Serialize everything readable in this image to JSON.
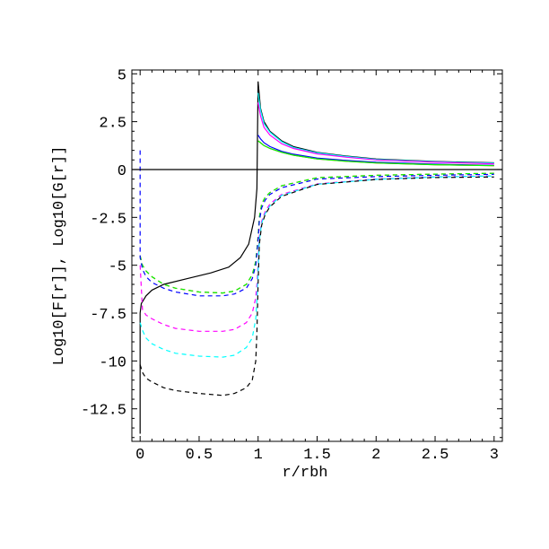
{
  "chart_data": {
    "type": "line",
    "title": "",
    "xlabel": "r/rbh",
    "ylabel": "Log10[F[r]], Log10[G[r]]",
    "xlim": [
      -0.07,
      3.07
    ],
    "ylim": [
      -14.2,
      5.2
    ],
    "xticks": [
      0,
      0.5,
      1,
      1.5,
      2,
      2.5,
      3
    ],
    "xtick_labels": [
      "0",
      "0.5",
      "1",
      "1.5",
      "2",
      "2.5",
      "3"
    ],
    "yticks": [
      5,
      2.5,
      0,
      -2.5,
      -5,
      -7.5,
      -10,
      -12.5
    ],
    "ytick_labels": [
      "5",
      "2.5",
      "0",
      "-2.5",
      "-5",
      "-7.5",
      "-10",
      "-12.5"
    ],
    "grid": false,
    "zero_line": true,
    "series": [
      {
        "style": "solid",
        "color": "#000000",
        "x": [
          0,
          0,
          0.01,
          0.05,
          0.1,
          0.2,
          0.4,
          0.6,
          0.75,
          0.85,
          0.92,
          0.97,
          0.99,
          1.0,
          1.02,
          1.05,
          1.1,
          1.2,
          1.3,
          1.5,
          1.75,
          2,
          2.5,
          3
        ],
        "y": [
          -13.8,
          -7.5,
          -7.0,
          -6.6,
          -6.3,
          -6.0,
          -5.7,
          -5.4,
          -5.1,
          -4.6,
          -3.9,
          -2.5,
          -1.0,
          4.6,
          3.2,
          2.5,
          2.0,
          1.5,
          1.2,
          0.9,
          0.7,
          0.55,
          0.42,
          0.35
        ]
      },
      {
        "style": "solid",
        "color": "#00ffff",
        "x": [
          1.0,
          1.02,
          1.05,
          1.1,
          1.2,
          1.3,
          1.5,
          1.75,
          2,
          2.5,
          3
        ],
        "y": [
          4.0,
          3.1,
          2.4,
          1.95,
          1.45,
          1.15,
          0.87,
          0.68,
          0.53,
          0.4,
          0.33
        ]
      },
      {
        "style": "solid",
        "color": "#ff00ff",
        "x": [
          1.0,
          1.02,
          1.05,
          1.1,
          1.2,
          1.3,
          1.5,
          1.75,
          2,
          2.5,
          3
        ],
        "y": [
          3.5,
          2.8,
          2.2,
          1.8,
          1.35,
          1.1,
          0.82,
          0.64,
          0.5,
          0.38,
          0.3
        ]
      },
      {
        "style": "solid",
        "color": "#0000ff",
        "x": [
          1.0,
          1.02,
          1.05,
          1.1,
          1.2,
          1.3,
          1.5,
          1.75,
          2,
          2.5,
          3
        ],
        "y": [
          1.8,
          1.6,
          1.4,
          1.2,
          0.95,
          0.8,
          0.6,
          0.47,
          0.38,
          0.28,
          0.22
        ]
      },
      {
        "style": "solid",
        "color": "#ff0000",
        "x": [
          1.0,
          1.02,
          1.05,
          1.1,
          1.2,
          1.3,
          1.5,
          1.75,
          2,
          2.5,
          3
        ],
        "y": [
          1.5,
          1.4,
          1.25,
          1.1,
          0.9,
          0.75,
          0.55,
          0.43,
          0.34,
          0.25,
          0.2
        ]
      },
      {
        "style": "solid",
        "color": "#00ff00",
        "x": [
          1.0,
          1.02,
          1.05,
          1.1,
          1.2,
          1.3,
          1.5,
          1.75,
          2,
          2.5,
          3
        ],
        "y": [
          1.5,
          1.4,
          1.25,
          1.1,
          0.9,
          0.75,
          0.55,
          0.43,
          0.34,
          0.25,
          0.2
        ]
      },
      {
        "style": "dashed",
        "color": "#ff0000",
        "x": [
          0,
          0.02,
          0.05,
          0.1,
          0.2,
          0.3,
          0.5,
          0.7,
          0.8,
          0.9,
          0.95,
          0.98,
          0.99,
          1.0,
          1.01,
          1.03,
          1.06,
          1.1,
          1.2,
          1.5,
          2,
          2.5,
          3
        ],
        "y": [
          -4.5,
          -5.0,
          -5.3,
          -5.6,
          -6.0,
          -6.2,
          -6.4,
          -6.45,
          -6.35,
          -6.0,
          -5.5,
          -4.8,
          -4.2,
          -3.5,
          -2.5,
          -1.8,
          -1.45,
          -1.2,
          -0.85,
          -0.43,
          -0.3,
          -0.24,
          -0.2
        ]
      },
      {
        "style": "dashed",
        "color": "#00ff00",
        "x": [
          0,
          0.02,
          0.05,
          0.1,
          0.2,
          0.3,
          0.5,
          0.7,
          0.8,
          0.9,
          0.95,
          0.98,
          0.99,
          1.0,
          1.01,
          1.03,
          1.06,
          1.1,
          1.2,
          1.5,
          2,
          2.5,
          3
        ],
        "y": [
          -4.5,
          -5.0,
          -5.3,
          -5.6,
          -6.0,
          -6.2,
          -6.4,
          -6.45,
          -6.35,
          -6.0,
          -5.5,
          -4.8,
          -4.2,
          -3.5,
          -2.5,
          -1.8,
          -1.45,
          -1.2,
          -0.85,
          -0.43,
          -0.3,
          -0.24,
          -0.2
        ]
      },
      {
        "style": "dashed",
        "color": "#0000ff",
        "x": [
          0,
          0,
          0.02,
          0.05,
          0.1,
          0.2,
          0.3,
          0.5,
          0.7,
          0.8,
          0.9,
          0.95,
          0.98,
          0.99,
          1.0,
          1.01,
          1.03,
          1.06,
          1.1,
          1.2,
          1.5,
          2,
          2.5,
          3
        ],
        "y": [
          1.0,
          -4.6,
          -5.2,
          -5.6,
          -5.9,
          -6.2,
          -6.4,
          -6.6,
          -6.6,
          -6.5,
          -6.2,
          -5.7,
          -5.0,
          -4.4,
          -3.7,
          -2.7,
          -2.0,
          -1.6,
          -1.3,
          -0.95,
          -0.5,
          -0.37,
          -0.3,
          -0.25
        ]
      },
      {
        "style": "dashed",
        "color": "#ff00ff",
        "x": [
          0,
          0.02,
          0.05,
          0.1,
          0.2,
          0.3,
          0.5,
          0.7,
          0.8,
          0.9,
          0.95,
          0.98,
          0.99,
          1.0,
          1.01,
          1.03,
          1.06,
          1.1,
          1.2,
          1.5,
          2,
          2.5,
          3
        ],
        "y": [
          -5.0,
          -7.3,
          -7.6,
          -7.8,
          -8.1,
          -8.3,
          -8.45,
          -8.45,
          -8.35,
          -8.0,
          -7.5,
          -6.7,
          -6.0,
          -5.0,
          -3.5,
          -2.7,
          -2.2,
          -1.8,
          -1.3,
          -0.75,
          -0.5,
          -0.38,
          -0.33
        ]
      },
      {
        "style": "dashed",
        "color": "#00ffff",
        "x": [
          0,
          0.02,
          0.05,
          0.1,
          0.2,
          0.3,
          0.5,
          0.7,
          0.8,
          0.9,
          0.95,
          0.98,
          0.99,
          1.0,
          1.01,
          1.03,
          1.06,
          1.1,
          1.2,
          1.5,
          2,
          2.5,
          3
        ],
        "y": [
          -8.0,
          -8.4,
          -8.8,
          -9.1,
          -9.4,
          -9.6,
          -9.75,
          -9.8,
          -9.7,
          -9.3,
          -8.8,
          -7.8,
          -6.8,
          -5.3,
          -3.7,
          -2.8,
          -2.3,
          -1.9,
          -1.35,
          -0.77,
          -0.51,
          -0.39,
          -0.34
        ]
      },
      {
        "style": "dashed",
        "color": "#000000",
        "x": [
          0,
          0.02,
          0.05,
          0.1,
          0.2,
          0.3,
          0.5,
          0.7,
          0.8,
          0.9,
          0.95,
          0.98,
          0.99,
          1.0,
          1.01,
          1.03,
          1.06,
          1.1,
          1.2,
          1.5,
          2,
          2.5,
          3
        ],
        "y": [
          -10.2,
          -10.6,
          -10.9,
          -11.1,
          -11.4,
          -11.55,
          -11.7,
          -11.8,
          -11.7,
          -11.4,
          -11.0,
          -10.0,
          -8.5,
          -6.0,
          -3.9,
          -2.9,
          -2.35,
          -1.95,
          -1.4,
          -0.78,
          -0.52,
          -0.42,
          -0.39
        ]
      }
    ]
  }
}
